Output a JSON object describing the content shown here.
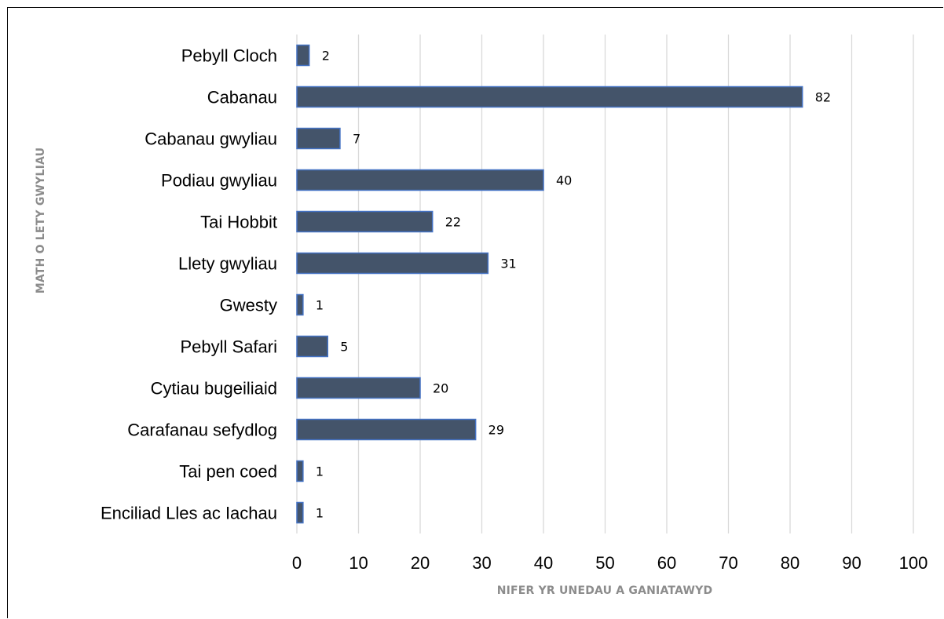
{
  "chart_data": {
    "type": "bar",
    "orientation": "horizontal",
    "categories": [
      "Pebyll Cloch",
      "Cabanau",
      "Cabanau gwyliau",
      "Podiau gwyliau",
      "Tai Hobbit",
      "Llety gwyliau",
      "Gwesty",
      "Pebyll Safari",
      "Cytiau bugeiliaid",
      "Carafanau sefydlog",
      "Tai pen coed",
      "Enciliad Lles ac Iachau"
    ],
    "values": [
      2,
      82,
      7,
      40,
      22,
      31,
      1,
      5,
      20,
      29,
      1,
      1
    ],
    "xlabel": "NIFER YR UNEDAU A GANIATAWYD",
    "ylabel": "MATH O LETY GWYLIAU",
    "xlim": [
      0,
      100
    ],
    "xticks": [
      0,
      10,
      20,
      30,
      40,
      50,
      60,
      70,
      80,
      90,
      100
    ],
    "grid": "vertical",
    "legend": "none",
    "colors": {
      "bar_fill": "#44546a",
      "bar_edge": "#4472c4",
      "grid": "#d9d9d9",
      "axis_title": "#8c8c8c"
    }
  }
}
